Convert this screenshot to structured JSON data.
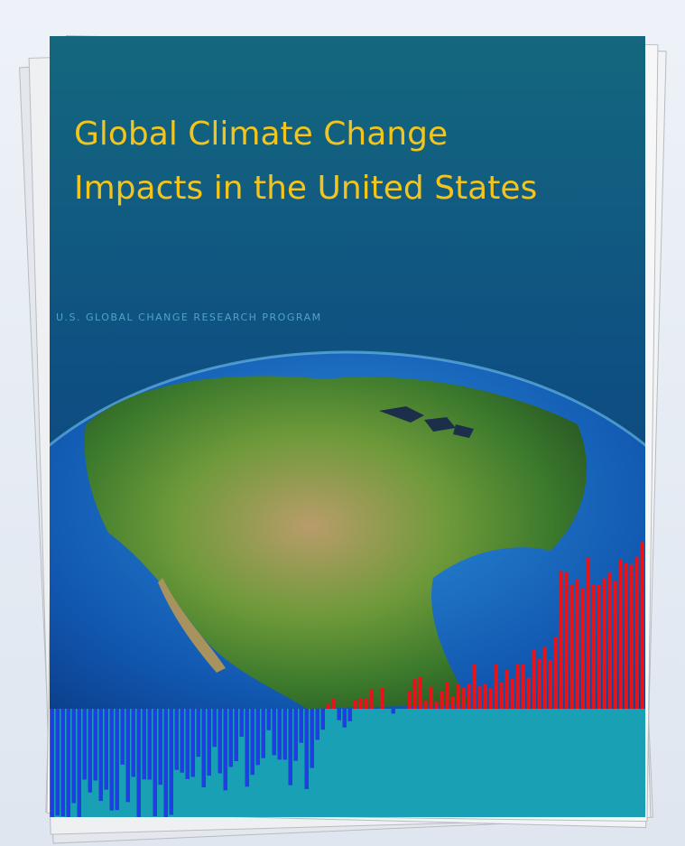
{
  "cover": {
    "title_lines": [
      "Global Climate Change",
      "Impacts in the United States"
    ],
    "publisher": "U.S. GLOBAL CHANGE RESEARCH PROGRAM"
  }
}
